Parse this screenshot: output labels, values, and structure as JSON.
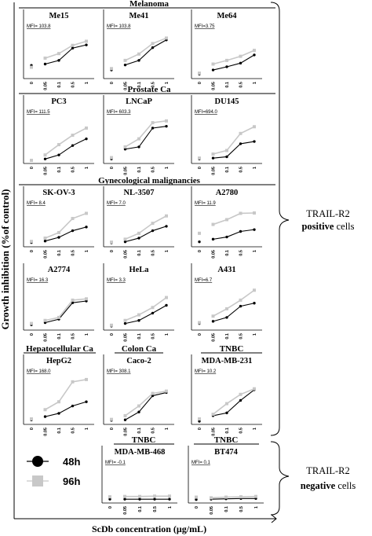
{
  "colors": {
    "h48": "#000000",
    "h96": "#c8c8c8",
    "axis": "#000000",
    "bracket": "#000000"
  },
  "figure": {
    "y_title": "Growth inhibition (%of control)",
    "x_title": "ScDb concentration (μg/mL)",
    "groups": [
      {
        "title": "Melanoma"
      },
      {
        "title": "Prostate Ca"
      },
      {
        "title": "Gynecological malignancies"
      },
      {
        "title": "Hepatocellular Ca"
      },
      {
        "title": "Colon Ca"
      },
      {
        "title": "TNBC"
      },
      {
        "title": "TNBC"
      },
      {
        "title": "TNBC"
      }
    ],
    "legend": [
      {
        "label": "48h",
        "color": "#000000"
      },
      {
        "label": "96h",
        "color": "#c8c8c8"
      }
    ],
    "side_labels": {
      "positive": {
        "line1": "TRAIL-R2",
        "line2": "positive",
        "line2_rest": " cells"
      },
      "negative": {
        "line1": "TRAIL-R2",
        "line2": "negative",
        "line2_rest": " cells"
      }
    }
  },
  "chart_data": [
    {
      "type": "line",
      "title": "Me15",
      "annotation": "MFI= 103.8",
      "categories": [
        "0",
        "0.05",
        "0.1",
        "0.5",
        "1"
      ],
      "ylim": [
        0,
        100
      ],
      "series": [
        {
          "name": "48h",
          "values": [
            22,
            25,
            33,
            60,
            67
          ]
        },
        {
          "name": "96h",
          "values": [
            18,
            38,
            48,
            66,
            75
          ]
        }
      ]
    },
    {
      "type": "line",
      "title": "Me41",
      "annotation": "MFI= 103.8",
      "categories": [
        "0",
        "0.05",
        "0.1",
        "0.5",
        "1"
      ],
      "ylim": [
        0,
        100
      ],
      "series": [
        {
          "name": "48h",
          "values": [
            12,
            23,
            33,
            61,
            78
          ]
        },
        {
          "name": "96h",
          "values": [
            15,
            33,
            47,
            70,
            82
          ]
        }
      ]
    },
    {
      "type": "line",
      "title": "Me64",
      "annotation": "MFI=3.75",
      "categories": [
        "0",
        "0.05",
        "0.1",
        "0.5",
        "1"
      ],
      "ylim": [
        0,
        100
      ],
      "series": [
        {
          "name": "48h",
          "values": [
            3,
            12,
            19,
            27,
            45
          ]
        },
        {
          "name": "96h",
          "values": [
            5,
            25,
            33,
            42,
            55
          ]
        }
      ]
    },
    {
      "type": "line",
      "title": "PC3",
      "annotation": "MFI= 111.5",
      "categories": [
        "0",
        "0.05",
        "0.1",
        "0.5",
        "1"
      ],
      "ylim": [
        0,
        100
      ],
      "series": [
        {
          "name": "48h",
          "values": [
            0,
            3,
            12,
            33,
            48
          ]
        },
        {
          "name": "96h",
          "values": [
            0,
            12,
            35,
            56,
            72
          ]
        }
      ]
    },
    {
      "type": "line",
      "title": "LNCaP",
      "annotation": "MFI= 603.3",
      "categories": [
        "0",
        "0.05",
        "0.1",
        "0.5",
        "1"
      ],
      "ylim": [
        0,
        100
      ],
      "series": [
        {
          "name": "48h",
          "values": [
            3,
            25,
            30,
            72,
            76
          ]
        },
        {
          "name": "96h",
          "values": [
            6,
            30,
            48,
            84,
            88
          ]
        }
      ]
    },
    {
      "type": "line",
      "title": "DU145",
      "annotation": "MFI=694.0",
      "categories": [
        "0",
        "0.05",
        "0.1",
        "0.5",
        "1"
      ],
      "ylim": [
        0,
        100
      ],
      "series": [
        {
          "name": "48h",
          "values": [
            3,
            5,
            8,
            37,
            42
          ]
        },
        {
          "name": "96h",
          "values": [
            5,
            14,
            22,
            60,
            75
          ]
        }
      ]
    },
    {
      "type": "line",
      "title": "SK-OV-3",
      "annotation": "MFI= 8.4",
      "categories": [
        "0",
        "0.05",
        "0.1",
        "0.5",
        "1"
      ],
      "ylim": [
        0,
        100
      ],
      "series": [
        {
          "name": "48h",
          "values": [
            3,
            7,
            17,
            35,
            45
          ]
        },
        {
          "name": "96h",
          "values": [
            6,
            15,
            30,
            68,
            82
          ]
        }
      ]
    },
    {
      "type": "line",
      "title": "NL-3507",
      "annotation": "MFI= 7.0",
      "categories": [
        "0",
        "0.05",
        "0.1",
        "0.5",
        "1"
      ],
      "ylim": [
        0,
        100
      ],
      "series": [
        {
          "name": "48h",
          "values": [
            2,
            5,
            15,
            35,
            47
          ]
        },
        {
          "name": "96h",
          "values": [
            4,
            12,
            28,
            55,
            75
          ]
        }
      ]
    },
    {
      "type": "line",
      "title": "A2780",
      "annotation": "MFI= 11.9",
      "categories": [
        "0",
        "0.05",
        "0.1",
        "0.5",
        "1"
      ],
      "ylim": [
        0,
        100
      ],
      "series": [
        {
          "name": "48h",
          "values": [
            5,
            12,
            18,
            33,
            38
          ]
        },
        {
          "name": "96h",
          "values": [
            28,
            52,
            65,
            82,
            83
          ]
        }
      ]
    },
    {
      "type": "line",
      "title": "A2774",
      "annotation": "MFI= 16.3",
      "categories": [
        "0",
        "0.05",
        "0.1",
        "0.5",
        "1"
      ],
      "ylim": [
        0,
        100
      ],
      "series": [
        {
          "name": "48h",
          "values": [
            5,
            10,
            18,
            56,
            60
          ]
        },
        {
          "name": "96h",
          "values": [
            8,
            15,
            22,
            62,
            65
          ]
        }
      ]
    },
    {
      "type": "line",
      "title": "HeLa",
      "annotation": "MFI= 3.3",
      "categories": [
        "0",
        "0.05",
        "0.1",
        "0.5",
        "1"
      ],
      "ylim": [
        0,
        100
      ],
      "series": [
        {
          "name": "48h",
          "values": [
            2,
            8,
            15,
            32,
            50
          ]
        },
        {
          "name": "96h",
          "values": [
            4,
            15,
            28,
            45,
            68
          ]
        }
      ]
    },
    {
      "type": "line",
      "title": "A431",
      "annotation": "MFI=6.7",
      "categories": [
        "0",
        "0.05",
        "0.1",
        "0.5",
        "1"
      ],
      "ylim": [
        0,
        100
      ],
      "series": [
        {
          "name": "48h",
          "values": [
            8,
            13,
            22,
            48,
            55
          ]
        },
        {
          "name": "96h",
          "values": [
            10,
            25,
            42,
            62,
            85
          ]
        }
      ]
    },
    {
      "type": "line",
      "title": "HepG2",
      "annotation": "MFI= 168.0",
      "categories": [
        "0",
        "0.05",
        "0.1",
        "0.5",
        "1"
      ],
      "ylim": [
        0,
        100
      ],
      "series": [
        {
          "name": "48h",
          "values": [
            3,
            10,
            17,
            33,
            42
          ]
        },
        {
          "name": "96h",
          "values": [
            5,
            25,
            42,
            85,
            90
          ]
        }
      ]
    },
    {
      "type": "line",
      "title": "Caco-2",
      "annotation": "MFI= 308.1",
      "categories": [
        "0",
        "0.05",
        "0.1",
        "0.5",
        "1"
      ],
      "ylim": [
        0,
        100
      ],
      "series": [
        {
          "name": "48h",
          "values": [
            2,
            3,
            20,
            55,
            62
          ]
        },
        {
          "name": "96h",
          "values": [
            4,
            12,
            33,
            60,
            65
          ]
        }
      ]
    },
    {
      "type": "line",
      "title": "MDA-MB-231",
      "annotation": "MFI= 10.2",
      "categories": [
        "0",
        "0.05",
        "0.1",
        "0.5",
        "1"
      ],
      "ylim": [
        0,
        100
      ],
      "series": [
        {
          "name": "48h",
          "values": [
            0,
            12,
            18,
            45,
            68
          ]
        },
        {
          "name": "96h",
          "values": [
            5,
            15,
            38,
            58,
            70
          ]
        }
      ]
    },
    {
      "type": "line",
      "title": "MDA-MB-468",
      "annotation": "MFI= -0.1",
      "categories": [
        "0",
        "0.05",
        "0.1",
        "0.5",
        "1"
      ],
      "ylim": [
        0,
        100
      ],
      "series": [
        {
          "name": "48h",
          "values": [
            2,
            2,
            2,
            2,
            2
          ]
        },
        {
          "name": "96h",
          "values": [
            9,
            10,
            10,
            11,
            11
          ]
        }
      ]
    },
    {
      "type": "line",
      "title": "BT474",
      "annotation": "MFI= 0.1",
      "categories": [
        "0",
        "0.05",
        "0.1",
        "0.5",
        "1"
      ],
      "ylim": [
        0,
        100
      ],
      "series": [
        {
          "name": "48h",
          "values": [
            1,
            2,
            3,
            4,
            4
          ]
        },
        {
          "name": "96h",
          "values": [
            8,
            6,
            8,
            9,
            10
          ]
        }
      ]
    }
  ]
}
